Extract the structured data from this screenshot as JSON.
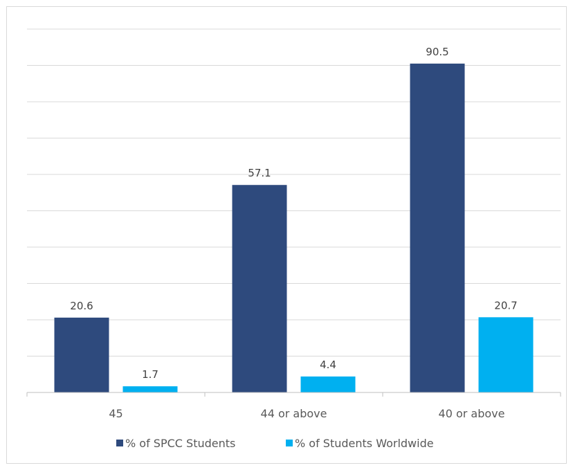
{
  "chart_data": {
    "type": "bar",
    "categories": [
      "45",
      "44 or above",
      "40 or above"
    ],
    "series": [
      {
        "name": "% of SPCC Students",
        "values": [
          20.6,
          57.1,
          90.5
        ],
        "color": "#2e4a7d"
      },
      {
        "name": "% of Students Worldwide",
        "values": [
          1.7,
          4.4,
          20.7
        ],
        "color": "#00b0f0"
      }
    ],
    "title": "",
    "xlabel": "",
    "ylabel": "",
    "ylim": [
      0,
      100
    ],
    "y_tick_step": 10,
    "y_tick_labels_shown": false,
    "grid": true,
    "legend_position": "bottom",
    "data_labels": true
  }
}
